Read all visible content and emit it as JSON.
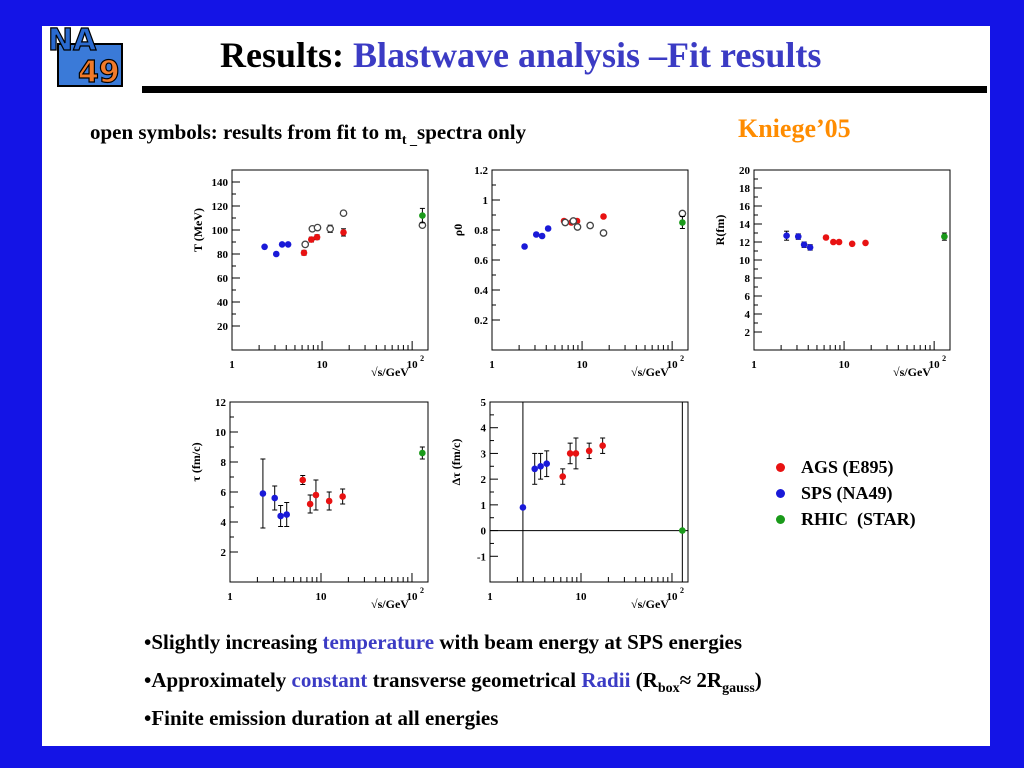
{
  "slide": {
    "title_prefix": "Results: ",
    "title_highlight": "Blastwave analysis –Fit results",
    "subtitle_main": "open symbols: results from fit to m",
    "subtitle_sub": "t _",
    "subtitle_rest": "spectra only",
    "credit": "Kniege’05",
    "logo_top": "NA",
    "logo_bottom": "49"
  },
  "legend": {
    "items": [
      {
        "label": "AGS (E895)",
        "color": "#e81212"
      },
      {
        "label": "SPS (NA49)",
        "color": "#1a1ad8"
      },
      {
        "label": "RHIC  (STAR)",
        "color": "#1a9a1a"
      }
    ]
  },
  "bullets": {
    "b1_pre": "•Slightly increasing ",
    "b1_hl": "temperature",
    "b1_post": " with beam energy at SPS energies",
    "b2_pre": "•Approximately ",
    "b2_hl": "constant",
    "b2_mid": " transverse geometrical ",
    "b2_hl2": "Radii",
    "b2_open": " (R",
    "b2_sub1": "box",
    "b2_approx": "≈ 2R",
    "b2_sub2": "gauss",
    "b2_close": ")",
    "b3": "•Finite emission duration at all energies"
  },
  "colors": {
    "ags": "#e81212",
    "sps": "#1a1ad8",
    "rhic": "#1a9a1a",
    "open": "#444444"
  },
  "chart_data": [
    {
      "id": "T",
      "type": "scatter",
      "xscale": "log",
      "xlim": [
        1,
        150
      ],
      "ylim": [
        0,
        150
      ],
      "xlabel": "√s/GeV",
      "ylabel": "T (MeV)",
      "xticks": [
        {
          "v": 1,
          "l": "1"
        },
        {
          "v": 10,
          "l": "10"
        },
        {
          "v": 100,
          "l": "10",
          "sup": "2"
        }
      ],
      "yticks": [
        20,
        40,
        60,
        80,
        100,
        120,
        140
      ],
      "series": [
        {
          "group": "sps",
          "x": [
            2.3,
            3.1,
            3.6,
            4.2
          ],
          "y": [
            86,
            80,
            88,
            88
          ]
        },
        {
          "group": "ags",
          "x": [
            6.3,
            7.6,
            8.8,
            12.3,
            17.3
          ],
          "y": [
            81,
            92,
            94,
            101,
            98
          ],
          "err": [
            2,
            2,
            2,
            3,
            3
          ]
        },
        {
          "group": "open",
          "x": [
            6.5,
            7.8,
            8.9,
            12.3,
            17.3,
            130
          ],
          "y": [
            88,
            101,
            102,
            101,
            114,
            104
          ]
        },
        {
          "group": "rhic",
          "x": [
            130
          ],
          "y": [
            112
          ],
          "err": [
            6
          ]
        }
      ]
    },
    {
      "id": "rho",
      "type": "scatter",
      "xscale": "log",
      "xlim": [
        1,
        150
      ],
      "ylim": [
        0,
        1.2
      ],
      "xlabel": "√s/GeV",
      "ylabel": "ρ0",
      "xticks": [
        {
          "v": 1,
          "l": "1"
        },
        {
          "v": 10,
          "l": "10"
        },
        {
          "v": 100,
          "l": "10",
          "sup": "2"
        }
      ],
      "yticks": [
        0.2,
        0.4,
        0.6,
        0.8,
        1,
        1.2
      ],
      "series": [
        {
          "group": "sps",
          "x": [
            2.3,
            3.1,
            3.6,
            4.2
          ],
          "y": [
            0.69,
            0.77,
            0.76,
            0.81
          ]
        },
        {
          "group": "ags",
          "x": [
            6.3,
            7.6,
            8.8,
            12.3,
            17.3
          ],
          "y": [
            0.86,
            0.85,
            0.86,
            0.83,
            0.89
          ]
        },
        {
          "group": "open",
          "x": [
            6.5,
            8.0,
            8.9,
            12.3,
            17.3,
            130
          ],
          "y": [
            0.85,
            0.86,
            0.82,
            0.83,
            0.78,
            0.91
          ]
        },
        {
          "group": "rhic",
          "x": [
            130
          ],
          "y": [
            0.85
          ],
          "err": [
            0.04
          ]
        }
      ]
    },
    {
      "id": "R",
      "type": "scatter",
      "xscale": "log",
      "xlim": [
        1,
        150
      ],
      "ylim": [
        0,
        20
      ],
      "xlabel": "√s/GeV",
      "ylabel": "R(fm)",
      "xticks": [
        {
          "v": 1,
          "l": "1"
        },
        {
          "v": 10,
          "l": "10"
        },
        {
          "v": 100,
          "l": "10",
          "sup": "2"
        }
      ],
      "yticks": [
        2,
        4,
        6,
        8,
        10,
        12,
        14,
        16,
        18,
        20
      ],
      "series": [
        {
          "group": "sps",
          "x": [
            2.3,
            3.1,
            3.6,
            4.2
          ],
          "y": [
            12.7,
            12.6,
            11.7,
            11.4
          ],
          "err": [
            0.5,
            0.3,
            0.3,
            0.3
          ]
        },
        {
          "group": "ags",
          "x": [
            6.3,
            7.6,
            8.8,
            12.3,
            17.3
          ],
          "y": [
            12.5,
            12.0,
            12.0,
            11.8,
            11.9
          ]
        },
        {
          "group": "rhic",
          "x": [
            130
          ],
          "y": [
            12.6
          ],
          "err": [
            0.4
          ]
        }
      ]
    },
    {
      "id": "tau",
      "type": "scatter",
      "xscale": "log",
      "xlim": [
        1,
        150
      ],
      "ylim": [
        0,
        12
      ],
      "xlabel": "√s/GeV",
      "ylabel": "τ (fm/c)",
      "xticks": [
        {
          "v": 1,
          "l": "1"
        },
        {
          "v": 10,
          "l": "10"
        },
        {
          "v": 100,
          "l": "10",
          "sup": "2"
        }
      ],
      "yticks": [
        2,
        4,
        6,
        8,
        10,
        12
      ],
      "series": [
        {
          "group": "sps",
          "x": [
            2.3,
            3.1,
            3.6,
            4.2
          ],
          "y": [
            5.9,
            5.6,
            4.4,
            4.5
          ],
          "err": [
            2.3,
            0.8,
            0.7,
            0.8
          ]
        },
        {
          "group": "ags",
          "x": [
            6.3,
            7.6,
            8.8,
            12.3,
            17.3
          ],
          "y": [
            6.8,
            5.2,
            5.8,
            5.4,
            5.7
          ],
          "err": [
            0.3,
            0.6,
            1.0,
            0.6,
            0.5
          ]
        },
        {
          "group": "rhic",
          "x": [
            130
          ],
          "y": [
            8.6
          ],
          "err": [
            0.4
          ]
        }
      ]
    },
    {
      "id": "dtau",
      "type": "scatter",
      "xscale": "log",
      "xlim": [
        1,
        150
      ],
      "ylim": [
        -2,
        5
      ],
      "xlabel": "√s/GeV",
      "ylabel": "Δτ (fm/c)",
      "xticks": [
        {
          "v": 1,
          "l": "1"
        },
        {
          "v": 10,
          "l": "10"
        },
        {
          "v": 100,
          "l": "10",
          "sup": "2"
        }
      ],
      "yticks": [
        -1,
        0,
        1,
        2,
        3,
        4,
        5
      ],
      "hline": 0,
      "vlines": [
        2.3,
        130
      ],
      "series": [
        {
          "group": "sps",
          "x": [
            2.3,
            3.1,
            3.6,
            4.2
          ],
          "y": [
            0.9,
            2.4,
            2.5,
            2.6
          ],
          "err": [
            0,
            0.6,
            0.5,
            0.5
          ]
        },
        {
          "group": "ags",
          "x": [
            6.3,
            7.6,
            8.8,
            12.3,
            17.3
          ],
          "y": [
            2.1,
            3.0,
            3.0,
            3.1,
            3.3
          ],
          "err": [
            0.3,
            0.4,
            0.6,
            0.3,
            0.3
          ]
        },
        {
          "group": "rhic",
          "x": [
            130
          ],
          "y": [
            0.0
          ]
        }
      ]
    }
  ]
}
